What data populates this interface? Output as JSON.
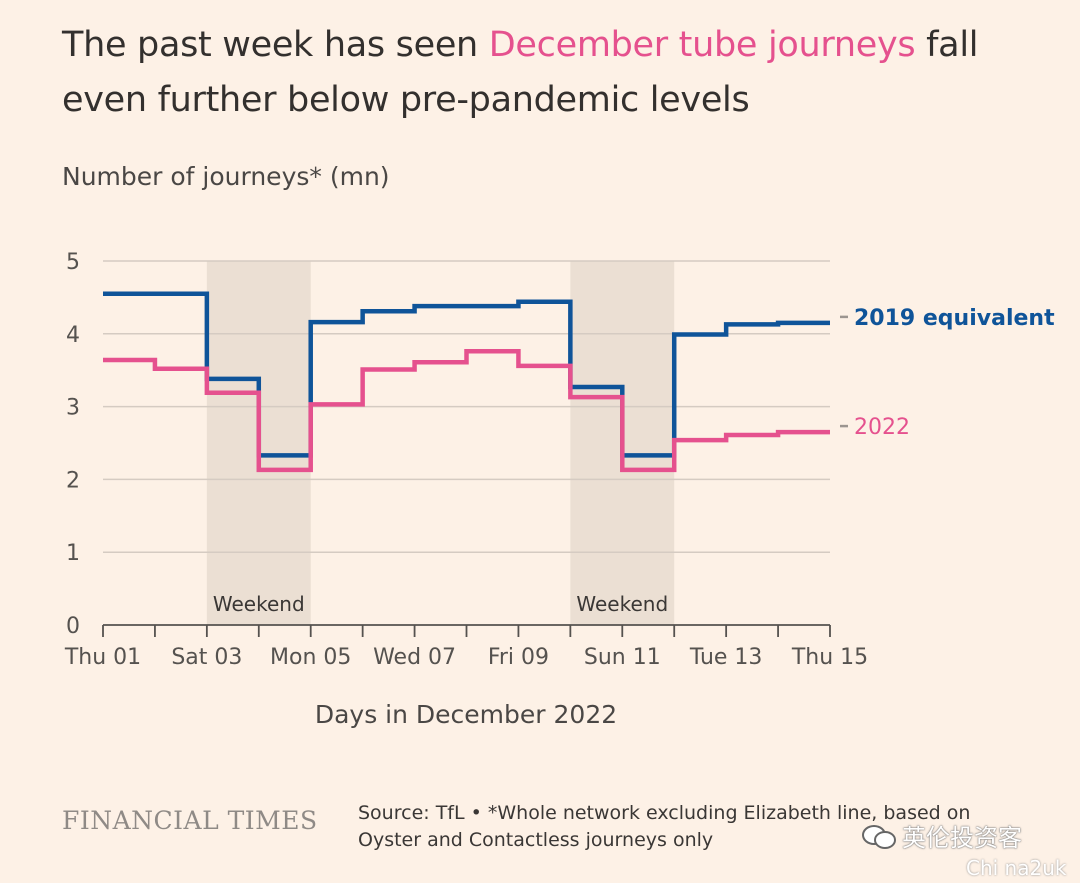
{
  "header": {
    "title_pre": "The past week has seen ",
    "title_highlight": "December tube journeys",
    "title_post": " fall even further below pre-pandemic levels"
  },
  "footer": {
    "logo": "FINANCIAL TIMES",
    "source": "Source: TfL • *Whole network excluding Elizabeth line, based on Oyster and Contactless journeys only"
  },
  "watermark": {
    "brand": "英伦投资客",
    "handle": "Chi na2uk"
  },
  "chart_data": {
    "type": "line",
    "step": true,
    "ylabel": "Number of journeys* (mn)",
    "xlabel": "Days in December 2022",
    "ylim": [
      0,
      5
    ],
    "yticks": [
      0,
      1,
      2,
      3,
      4,
      5
    ],
    "xlim": [
      1,
      15
    ],
    "xticks": [
      1,
      2,
      3,
      4,
      5,
      6,
      7,
      8,
      9,
      10,
      11,
      12,
      13,
      14,
      15
    ],
    "xtick_labels": [
      {
        "x": 1,
        "label": "Thu 01"
      },
      {
        "x": 3,
        "label": "Sat 03"
      },
      {
        "x": 5,
        "label": "Mon 05"
      },
      {
        "x": 7,
        "label": "Wed 07"
      },
      {
        "x": 9,
        "label": "Fri 09"
      },
      {
        "x": 11,
        "label": "Sun 11"
      },
      {
        "x": 13,
        "label": "Tue 13"
      },
      {
        "x": 15,
        "label": "Thu 15"
      }
    ],
    "shaded": [
      {
        "start": 3,
        "end": 5,
        "label": "Weekend"
      },
      {
        "start": 10,
        "end": 12,
        "label": "Weekend"
      }
    ],
    "grid": true,
    "series": [
      {
        "name": "2019 equivalent",
        "color": "#0f5499",
        "x": [
          1,
          2,
          3,
          4,
          5,
          6,
          7,
          8,
          9,
          10,
          11,
          12,
          13,
          14
        ],
        "values": [
          4.55,
          4.55,
          3.38,
          2.33,
          4.16,
          4.31,
          4.38,
          4.38,
          4.44,
          3.27,
          2.33,
          3.99,
          4.13,
          4.15
        ]
      },
      {
        "name": "2022",
        "color": "#e5518e",
        "x": [
          1,
          2,
          3,
          4,
          5,
          6,
          7,
          8,
          9,
          10,
          11,
          12,
          13,
          14
        ],
        "values": [
          3.64,
          3.52,
          3.19,
          2.13,
          3.03,
          3.51,
          3.61,
          3.76,
          3.56,
          3.13,
          2.13,
          2.54,
          2.61,
          2.65
        ]
      }
    ]
  }
}
